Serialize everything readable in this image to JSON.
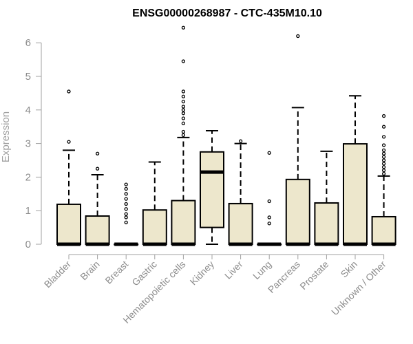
{
  "chart_data": {
    "type": "box",
    "title": "ENSG00000268987 - CTC-435M10.10",
    "xlabel": "",
    "ylabel": "Expression",
    "ylim": [
      0,
      6.5
    ],
    "yticks": [
      0,
      1,
      2,
      3,
      4,
      5,
      6
    ],
    "colors": {
      "box_fill": "#ede7cc",
      "box_stroke": "#000000",
      "axis": "#a0a0a0",
      "label": "#8c8c8c"
    },
    "categories": [
      "Bladder",
      "Brain",
      "Breast",
      "Gastric",
      "Hematopoietic cells",
      "Kidney",
      "Liver",
      "Lung",
      "Pancreas",
      "Prostate",
      "Skin",
      "Unknown / Other"
    ],
    "boxes": [
      {
        "q1": 0,
        "median": 0,
        "q3": 1.19,
        "whisker_low": 0,
        "whisker_high": 2.8,
        "outliers": [
          3.05,
          4.55
        ]
      },
      {
        "q1": 0,
        "median": 0,
        "q3": 0.84,
        "whisker_low": 0,
        "whisker_high": 2.07,
        "outliers": [
          2.25,
          2.7
        ]
      },
      {
        "q1": 0,
        "median": 0,
        "q3": 0,
        "whisker_low": 0,
        "whisker_high": 0,
        "outliers": [
          0.65,
          0.8,
          0.9,
          1.05,
          1.2,
          1.35,
          1.5,
          1.65,
          1.78
        ]
      },
      {
        "q1": 0,
        "median": 0,
        "q3": 1.02,
        "whisker_low": 0,
        "whisker_high": 2.45,
        "outliers": []
      },
      {
        "q1": 0,
        "median": 0,
        "q3": 1.3,
        "whisker_low": 0,
        "whisker_high": 3.18,
        "outliers": [
          3.25,
          3.35,
          3.6,
          3.75,
          3.9,
          4.0,
          4.1,
          4.25,
          4.4,
          4.55,
          5.45,
          6.45
        ]
      },
      {
        "q1": 0.5,
        "median": 2.15,
        "q3": 2.75,
        "whisker_low": 0,
        "whisker_high": 3.38,
        "outliers": []
      },
      {
        "q1": 0,
        "median": 0,
        "q3": 1.21,
        "whisker_low": 0,
        "whisker_high": 3.0,
        "outliers": [
          3.07
        ]
      },
      {
        "q1": 0,
        "median": 0,
        "q3": 0,
        "whisker_low": 0,
        "whisker_high": 0,
        "outliers": [
          0.62,
          0.8,
          1.28,
          2.72
        ]
      },
      {
        "q1": 0,
        "median": 0,
        "q3": 1.93,
        "whisker_low": 0,
        "whisker_high": 4.07,
        "outliers": [
          6.2
        ]
      },
      {
        "q1": 0,
        "median": 0,
        "q3": 1.23,
        "whisker_low": 0,
        "whisker_high": 2.77,
        "outliers": []
      },
      {
        "q1": 0,
        "median": 0,
        "q3": 2.99,
        "whisker_low": 0,
        "whisker_high": 4.42,
        "outliers": []
      },
      {
        "q1": 0,
        "median": 0,
        "q3": 0.82,
        "whisker_low": 0,
        "whisker_high": 2.03,
        "outliers": [
          2.1,
          2.2,
          2.3,
          2.4,
          2.5,
          2.6,
          2.7,
          2.8,
          2.95,
          3.2,
          3.5,
          3.82
        ]
      }
    ]
  }
}
